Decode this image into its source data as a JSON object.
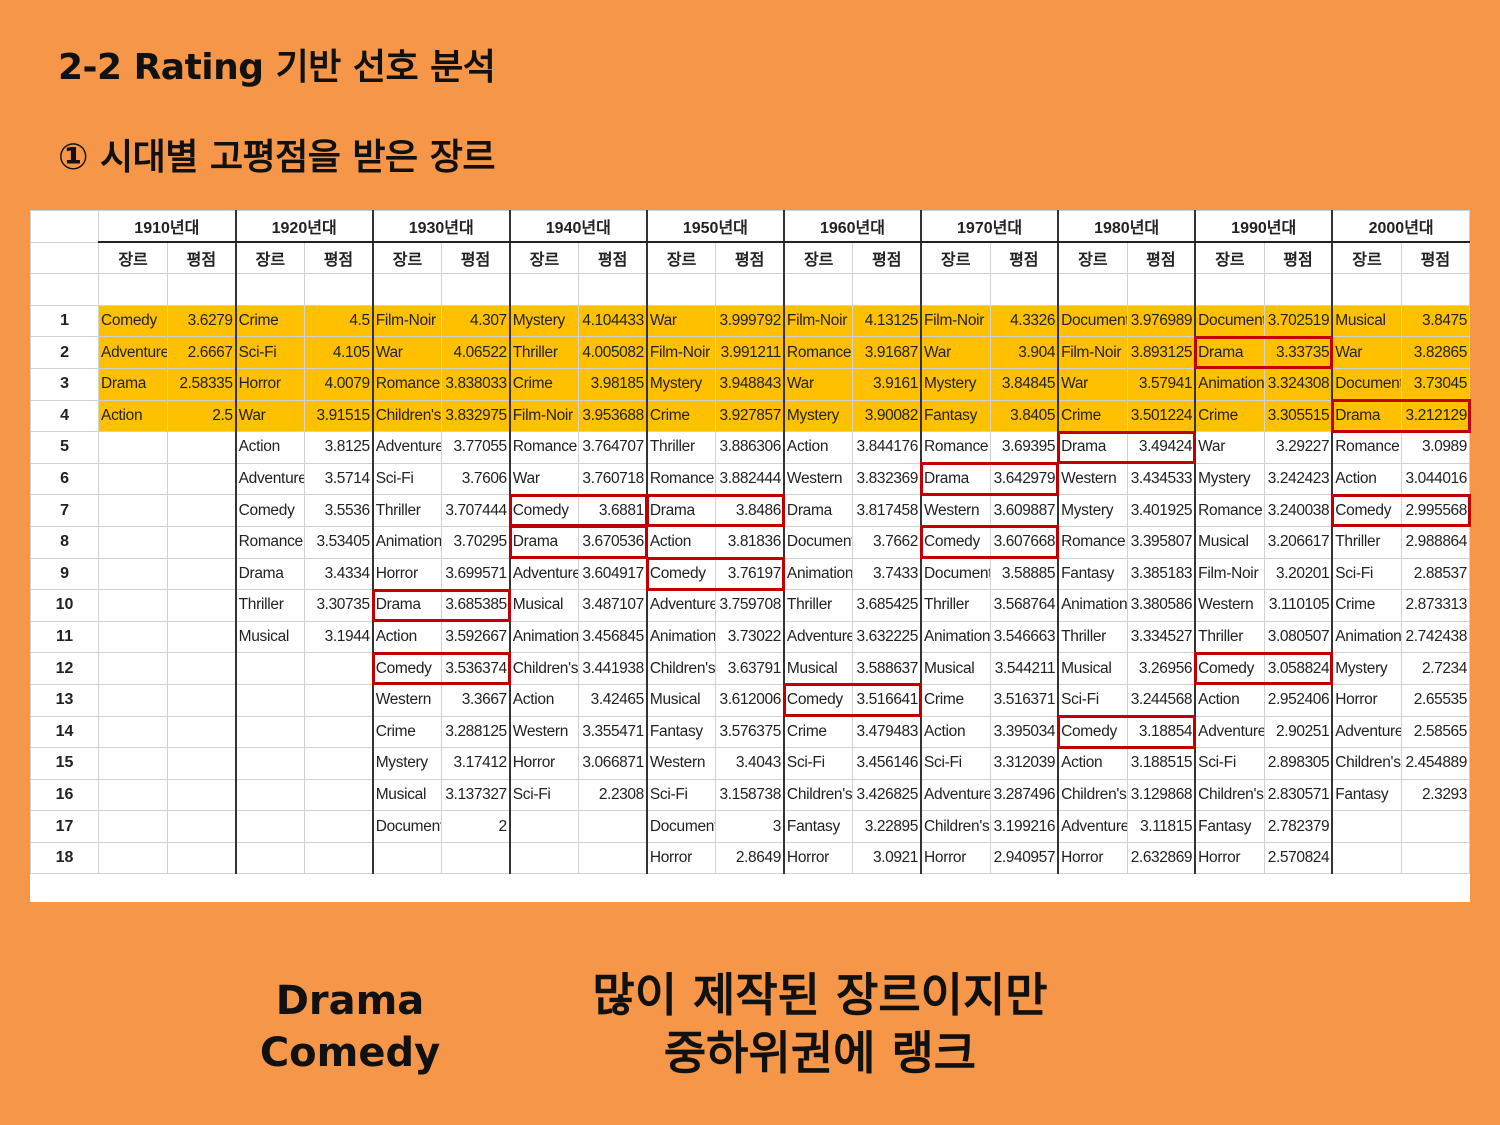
{
  "title": "2-2 Rating 기반 선호 분석",
  "subtitle": "① 시대별 고평점을 받은 장르",
  "colors": {
    "background": "#F59648",
    "top_highlight": "#FFC000",
    "box": "#C00000"
  },
  "table": {
    "decades": [
      "1910년대",
      "1920년대",
      "1930년대",
      "1940년대",
      "1950년대",
      "1960년대",
      "1970년대",
      "1980년대",
      "1990년대",
      "2000년대"
    ],
    "col_genre": "장르",
    "col_score": "평점",
    "rows": [
      {
        "rank": "1",
        "cells": [
          [
            "Comedy",
            "3.6279"
          ],
          [
            "Crime",
            "4.5"
          ],
          [
            "Film-Noir",
            "4.307"
          ],
          [
            "Mystery",
            "4.104433"
          ],
          [
            "War",
            "3.999792"
          ],
          [
            "Film-Noir",
            "4.13125"
          ],
          [
            "Film-Noir",
            "4.3326"
          ],
          [
            "Document",
            "3.976989"
          ],
          [
            "Document",
            "3.702519"
          ],
          [
            "Musical",
            "3.8475"
          ]
        ]
      },
      {
        "rank": "2",
        "cells": [
          [
            "Adventure",
            "2.6667"
          ],
          [
            "Sci-Fi",
            "4.105"
          ],
          [
            "War",
            "4.06522"
          ],
          [
            "Thriller",
            "4.005082"
          ],
          [
            "Film-Noir",
            "3.991211"
          ],
          [
            "Romance",
            "3.91687"
          ],
          [
            "War",
            "3.904"
          ],
          [
            "Film-Noir",
            "3.893125"
          ],
          [
            "Drama",
            "3.33735"
          ],
          [
            "War",
            "3.82865"
          ]
        ]
      },
      {
        "rank": "3",
        "cells": [
          [
            "Drama",
            "2.58335"
          ],
          [
            "Horror",
            "4.0079"
          ],
          [
            "Romance",
            "3.838033"
          ],
          [
            "Crime",
            "3.98185"
          ],
          [
            "Mystery",
            "3.948843"
          ],
          [
            "War",
            "3.9161"
          ],
          [
            "Mystery",
            "3.84845"
          ],
          [
            "War",
            "3.57941"
          ],
          [
            "Animation",
            "3.324308"
          ],
          [
            "Document",
            "3.73045"
          ]
        ]
      },
      {
        "rank": "4",
        "cells": [
          [
            "Action",
            "2.5"
          ],
          [
            "War",
            "3.91515"
          ],
          [
            "Children's",
            "3.832975"
          ],
          [
            "Film-Noir",
            "3.953688"
          ],
          [
            "Crime",
            "3.927857"
          ],
          [
            "Mystery",
            "3.90082"
          ],
          [
            "Fantasy",
            "3.8405"
          ],
          [
            "Crime",
            "3.501224"
          ],
          [
            "Crime",
            "3.305515"
          ],
          [
            "Drama",
            "3.212129"
          ]
        ]
      },
      {
        "rank": "5",
        "cells": [
          [
            "",
            ""
          ],
          [
            "Action",
            "3.8125"
          ],
          [
            "Adventure",
            "3.77055"
          ],
          [
            "Romance",
            "3.764707"
          ],
          [
            "Thriller",
            "3.886306"
          ],
          [
            "Action",
            "3.844176"
          ],
          [
            "Romance",
            "3.69395"
          ],
          [
            "Drama",
            "3.49424"
          ],
          [
            "War",
            "3.29227"
          ],
          [
            "Romance",
            "3.0989"
          ]
        ]
      },
      {
        "rank": "6",
        "cells": [
          [
            "",
            ""
          ],
          [
            "Adventure",
            "3.5714"
          ],
          [
            "Sci-Fi",
            "3.7606"
          ],
          [
            "War",
            "3.760718"
          ],
          [
            "Romance",
            "3.882444"
          ],
          [
            "Western",
            "3.832369"
          ],
          [
            "Drama",
            "3.642979"
          ],
          [
            "Western",
            "3.434533"
          ],
          [
            "Mystery",
            "3.242423"
          ],
          [
            "Action",
            "3.044016"
          ]
        ]
      },
      {
        "rank": "7",
        "cells": [
          [
            "",
            ""
          ],
          [
            "Comedy",
            "3.5536"
          ],
          [
            "Thriller",
            "3.707444"
          ],
          [
            "Comedy",
            "3.6881"
          ],
          [
            "Drama",
            "3.8486"
          ],
          [
            "Drama",
            "3.817458"
          ],
          [
            "Western",
            "3.609887"
          ],
          [
            "Mystery",
            "3.401925"
          ],
          [
            "Romance",
            "3.240038"
          ],
          [
            "Comedy",
            "2.995568"
          ]
        ]
      },
      {
        "rank": "8",
        "cells": [
          [
            "",
            ""
          ],
          [
            "Romance",
            "3.53405"
          ],
          [
            "Animation",
            "3.70295"
          ],
          [
            "Drama",
            "3.670536"
          ],
          [
            "Action",
            "3.81836"
          ],
          [
            "Document",
            "3.7662"
          ],
          [
            "Comedy",
            "3.607668"
          ],
          [
            "Romance",
            "3.395807"
          ],
          [
            "Musical",
            "3.206617"
          ],
          [
            "Thriller",
            "2.988864"
          ]
        ]
      },
      {
        "rank": "9",
        "cells": [
          [
            "",
            ""
          ],
          [
            "Drama",
            "3.4334"
          ],
          [
            "Horror",
            "3.699571"
          ],
          [
            "Adventure",
            "3.604917"
          ],
          [
            "Comedy",
            "3.76197"
          ],
          [
            "Animation",
            "3.7433"
          ],
          [
            "Document",
            "3.58885"
          ],
          [
            "Fantasy",
            "3.385183"
          ],
          [
            "Film-Noir",
            "3.20201"
          ],
          [
            "Sci-Fi",
            "2.88537"
          ]
        ]
      },
      {
        "rank": "10",
        "cells": [
          [
            "",
            ""
          ],
          [
            "Thriller",
            "3.30735"
          ],
          [
            "Drama",
            "3.685385"
          ],
          [
            "Musical",
            "3.487107"
          ],
          [
            "Adventure",
            "3.759708"
          ],
          [
            "Thriller",
            "3.685425"
          ],
          [
            "Thriller",
            "3.568764"
          ],
          [
            "Animation",
            "3.380586"
          ],
          [
            "Western",
            "3.110105"
          ],
          [
            "Crime",
            "2.873313"
          ]
        ]
      },
      {
        "rank": "11",
        "cells": [
          [
            "",
            ""
          ],
          [
            "Musical",
            "3.1944"
          ],
          [
            "Action",
            "3.592667"
          ],
          [
            "Animation",
            "3.456845"
          ],
          [
            "Animation",
            "3.73022"
          ],
          [
            "Adventure",
            "3.632225"
          ],
          [
            "Animation",
            "3.546663"
          ],
          [
            "Thriller",
            "3.334527"
          ],
          [
            "Thriller",
            "3.080507"
          ],
          [
            "Animation",
            "2.742438"
          ]
        ]
      },
      {
        "rank": "12",
        "cells": [
          [
            "",
            ""
          ],
          [
            "",
            ""
          ],
          [
            "Comedy",
            "3.536374"
          ],
          [
            "Children's",
            "3.441938"
          ],
          [
            "Children's",
            "3.63791"
          ],
          [
            "Musical",
            "3.588637"
          ],
          [
            "Musical",
            "3.544211"
          ],
          [
            "Musical",
            "3.26956"
          ],
          [
            "Comedy",
            "3.058824"
          ],
          [
            "Mystery",
            "2.7234"
          ]
        ]
      },
      {
        "rank": "13",
        "cells": [
          [
            "",
            ""
          ],
          [
            "",
            ""
          ],
          [
            "Western",
            "3.3667"
          ],
          [
            "Action",
            "3.42465"
          ],
          [
            "Musical",
            "3.612006"
          ],
          [
            "Comedy",
            "3.516641"
          ],
          [
            "Crime",
            "3.516371"
          ],
          [
            "Sci-Fi",
            "3.244568"
          ],
          [
            "Action",
            "2.952406"
          ],
          [
            "Horror",
            "2.65535"
          ]
        ]
      },
      {
        "rank": "14",
        "cells": [
          [
            "",
            ""
          ],
          [
            "",
            ""
          ],
          [
            "Crime",
            "3.288125"
          ],
          [
            "Western",
            "3.355471"
          ],
          [
            "Fantasy",
            "3.576375"
          ],
          [
            "Crime",
            "3.479483"
          ],
          [
            "Action",
            "3.395034"
          ],
          [
            "Comedy",
            "3.18854"
          ],
          [
            "Adventure",
            "2.90251"
          ],
          [
            "Adventure",
            "2.58565"
          ]
        ]
      },
      {
        "rank": "15",
        "cells": [
          [
            "",
            ""
          ],
          [
            "",
            ""
          ],
          [
            "Mystery",
            "3.17412"
          ],
          [
            "Horror",
            "3.066871"
          ],
          [
            "Western",
            "3.4043"
          ],
          [
            "Sci-Fi",
            "3.456146"
          ],
          [
            "Sci-Fi",
            "3.312039"
          ],
          [
            "Action",
            "3.188515"
          ],
          [
            "Sci-Fi",
            "2.898305"
          ],
          [
            "Children's",
            "2.454889"
          ]
        ]
      },
      {
        "rank": "16",
        "cells": [
          [
            "",
            ""
          ],
          [
            "",
            ""
          ],
          [
            "Musical",
            "3.137327"
          ],
          [
            "Sci-Fi",
            "2.2308"
          ],
          [
            "Sci-Fi",
            "3.158738"
          ],
          [
            "Children's",
            "3.426825"
          ],
          [
            "Adventure",
            "3.287496"
          ],
          [
            "Children's",
            "3.129868"
          ],
          [
            "Children's",
            "2.830571"
          ],
          [
            "Fantasy",
            "2.3293"
          ]
        ]
      },
      {
        "rank": "17",
        "cells": [
          [
            "",
            ""
          ],
          [
            "",
            ""
          ],
          [
            "Document",
            "2"
          ],
          [
            "",
            ""
          ],
          [
            "Document",
            "3"
          ],
          [
            "Fantasy",
            "3.22895"
          ],
          [
            "Children's",
            "3.199216"
          ],
          [
            "Adventure",
            "3.11815"
          ],
          [
            "Fantasy",
            "2.782379"
          ],
          [
            "",
            ""
          ]
        ]
      },
      {
        "rank": "18",
        "cells": [
          [
            "",
            ""
          ],
          [
            "",
            ""
          ],
          [
            "",
            ""
          ],
          [
            "",
            ""
          ],
          [
            "Horror",
            "2.8649"
          ],
          [
            "Horror",
            "3.0921"
          ],
          [
            "Horror",
            "2.940957"
          ],
          [
            "Horror",
            "2.632869"
          ],
          [
            "Horror",
            "2.570824"
          ],
          [
            "",
            ""
          ]
        ]
      }
    ],
    "boxed": [
      {
        "row": 2,
        "decade": 8
      },
      {
        "row": 4,
        "decade": 9
      },
      {
        "row": 5,
        "decade": 7
      },
      {
        "row": 6,
        "decade": 6
      },
      {
        "row": 7,
        "decade": 3
      },
      {
        "row": 7,
        "decade": 4
      },
      {
        "row": 7,
        "decade": 9
      },
      {
        "row": 8,
        "decade": 3
      },
      {
        "row": 8,
        "decade": 6
      },
      {
        "row": 9,
        "decade": 4
      },
      {
        "row": 10,
        "decade": 2
      },
      {
        "row": 12,
        "decade": 2
      },
      {
        "row": 12,
        "decade": 8
      },
      {
        "row": 13,
        "decade": 5
      },
      {
        "row": 14,
        "decade": 7
      }
    ]
  },
  "bottom_left": [
    "Drama",
    "Comedy"
  ],
  "bottom_right": [
    "많이 제작된 장르이지만",
    "중하위권에 랭크"
  ]
}
